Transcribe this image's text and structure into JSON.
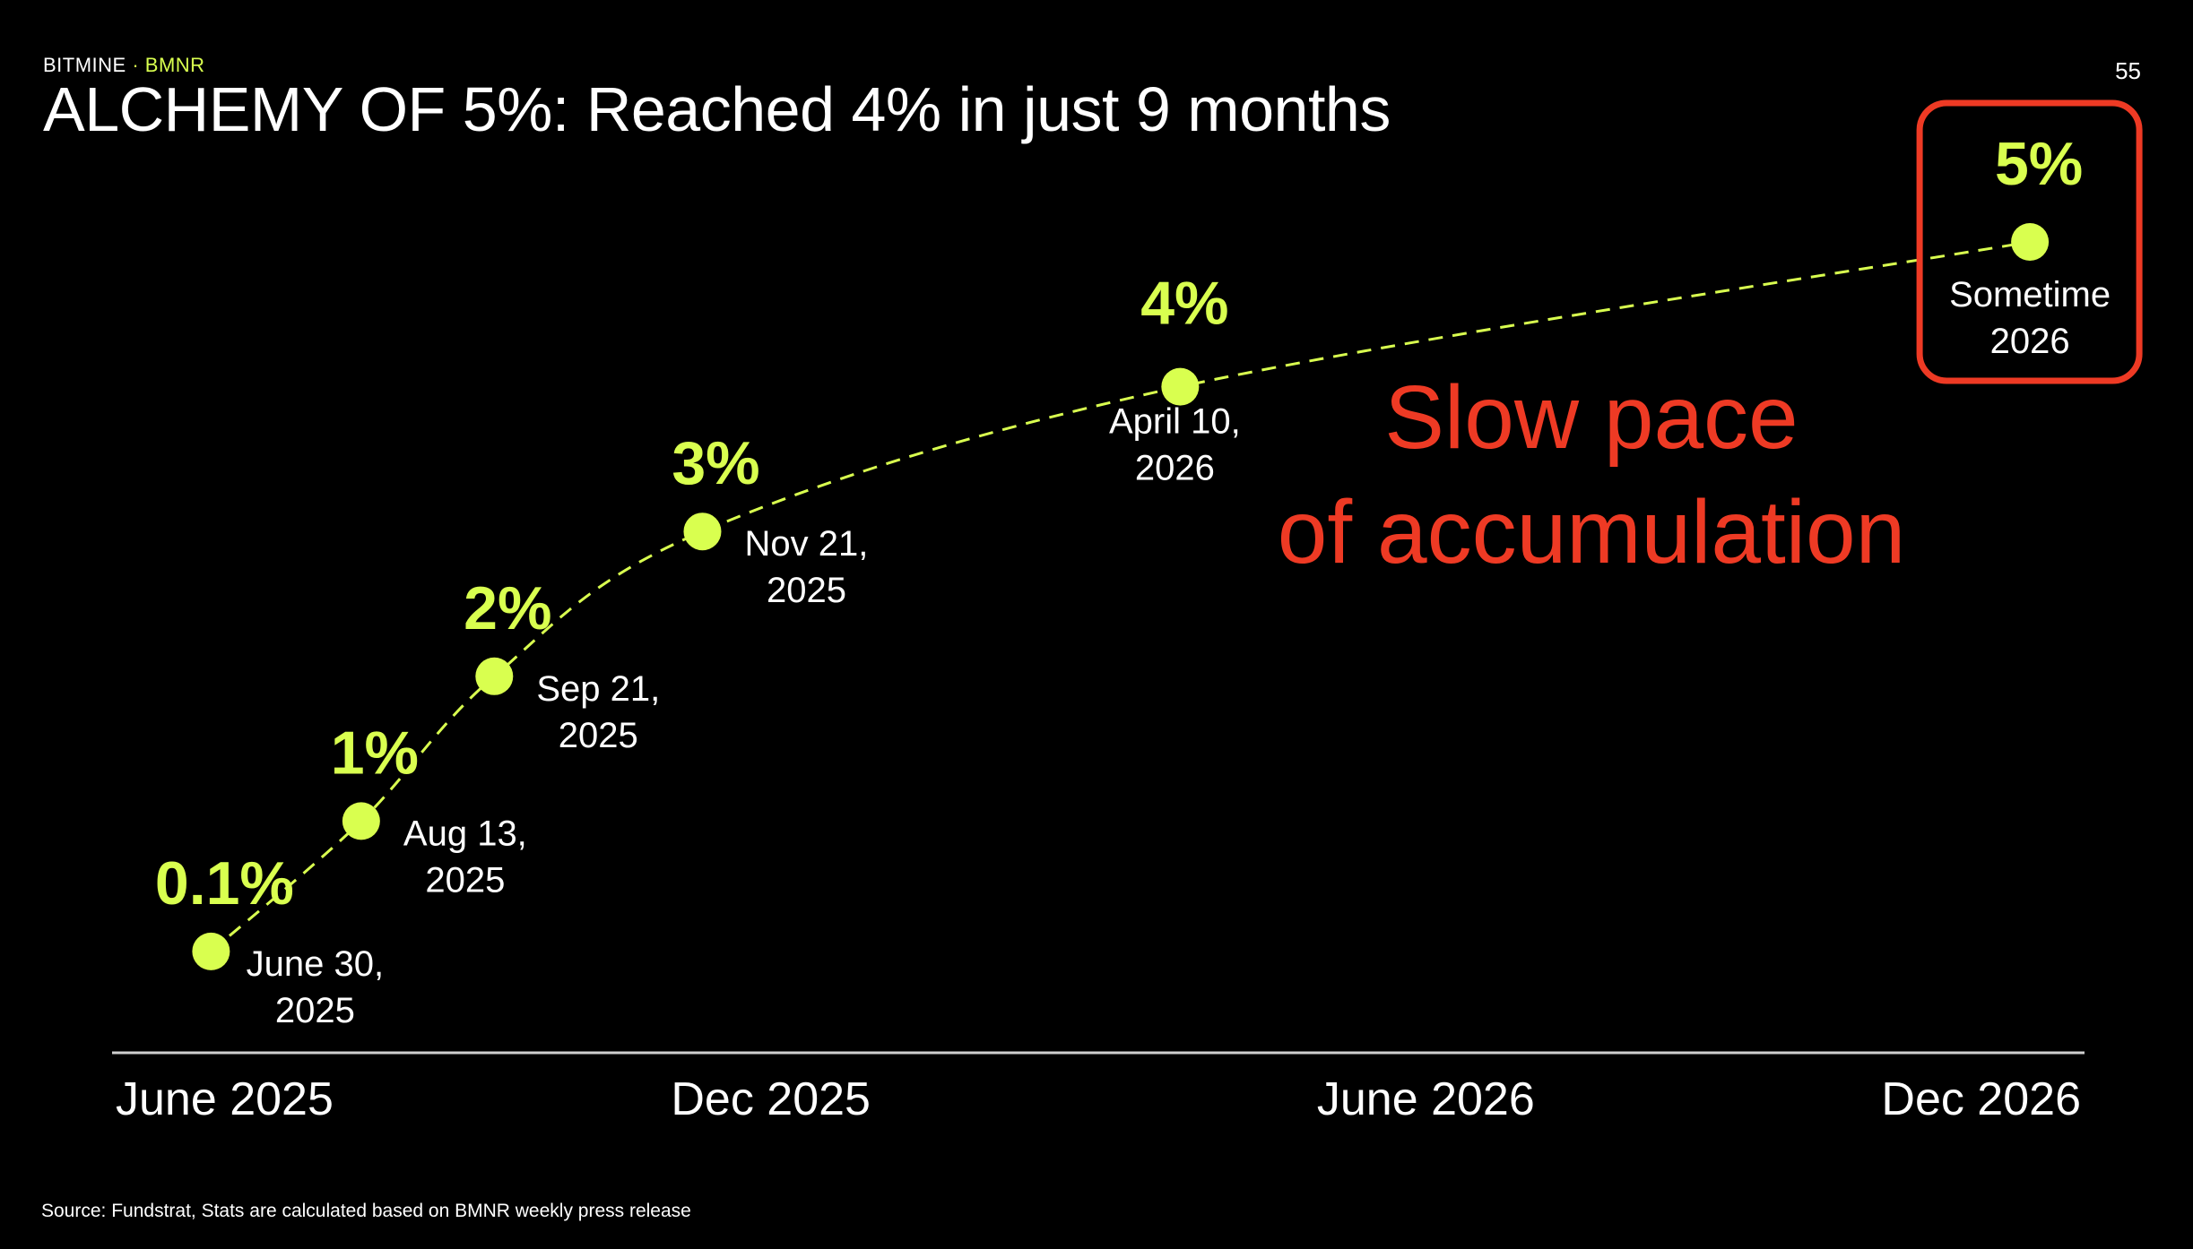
{
  "brand": {
    "name": "BITMINE",
    "separator": " · ",
    "ticker": "BMNR"
  },
  "page_number": "55",
  "title": "ALCHEMY OF 5%: Reached 4% in just 9 months",
  "source": "Source: Fundstrat, Stats are calculated based on BMNR weekly press release",
  "colors": {
    "background": "#000000",
    "accent": "#d9ff4f",
    "callout": "#ee3a24",
    "text": "#ffffff",
    "axis": "#cfcfcf"
  },
  "chart_data": {
    "type": "line",
    "title": "",
    "xlabel": "",
    "ylabel": "",
    "line_style": "dashed",
    "grid": false,
    "x_axis": {
      "range": [
        "2025-06-01",
        "2026-12-31"
      ],
      "ticks": [
        {
          "date": "2025-06-01",
          "label": "June 2025"
        },
        {
          "date": "2025-12-01",
          "label": "Dec 2025"
        },
        {
          "date": "2026-06-01",
          "label": "June 2026"
        },
        {
          "date": "2026-12-01",
          "label": "Dec 2026"
        }
      ]
    },
    "points": [
      {
        "date": "2025-06-30",
        "y": 0.1,
        "value_label": "0.1%",
        "date_label": [
          "June 30,",
          "2025"
        ]
      },
      {
        "date": "2025-08-13",
        "y": 1,
        "value_label": "1%",
        "date_label": [
          "Aug 13,",
          "2025"
        ]
      },
      {
        "date": "2025-09-21",
        "y": 2,
        "value_label": "2%",
        "date_label": [
          "Sep 21,",
          "2025"
        ]
      },
      {
        "date": "2025-11-21",
        "y": 3,
        "value_label": "3%",
        "date_label": [
          "Nov 21,",
          "2025"
        ]
      },
      {
        "date": "2026-04-10",
        "y": 4,
        "value_label": "4%",
        "date_label": [
          "April 10,",
          "2026"
        ]
      },
      {
        "date": "2026-12-15",
        "y": 5,
        "value_label": "5%",
        "date_label": [
          "Sometime",
          "2026"
        ],
        "highlighted": true
      }
    ],
    "annotation": {
      "lines": [
        "Slow pace",
        "of accumulation"
      ]
    }
  }
}
